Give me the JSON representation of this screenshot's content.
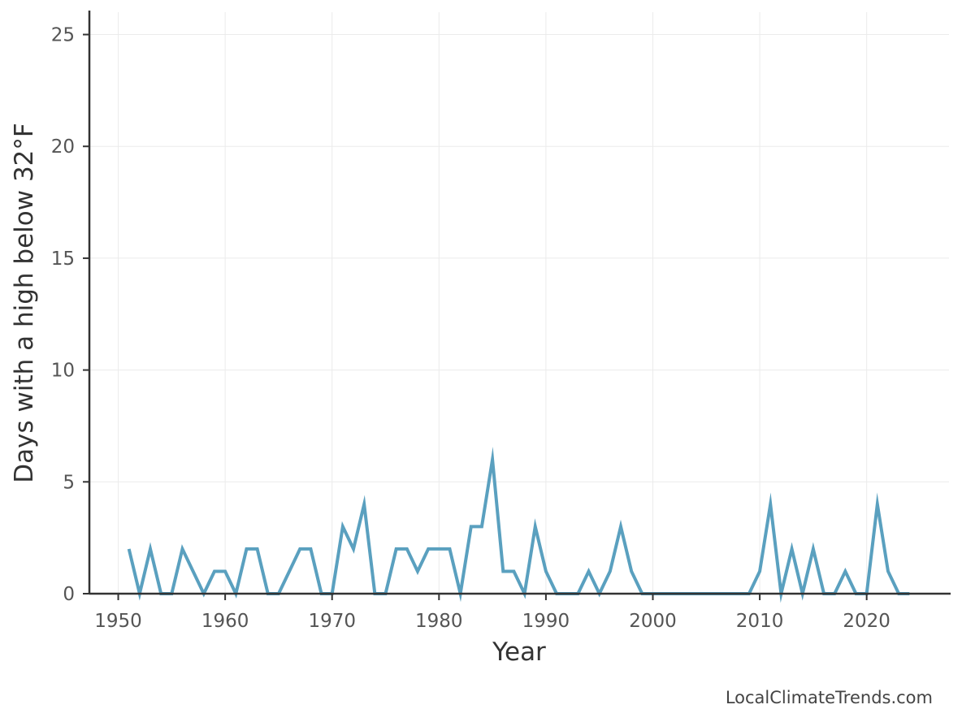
{
  "chart_data": {
    "type": "line",
    "title": "",
    "xlabel": "Year",
    "ylabel": "Days with a high below 32°F",
    "xlim": [
      1947.3,
      2027.7
    ],
    "ylim": [
      0,
      26
    ],
    "x_ticks": [
      1950,
      1960,
      1970,
      1980,
      1990,
      2000,
      2010,
      2020
    ],
    "y_ticks": [
      0,
      5,
      10,
      15,
      20,
      25
    ],
    "grid": true,
    "legend": "none",
    "x": [
      1951,
      1952,
      1953,
      1954,
      1955,
      1956,
      1957,
      1958,
      1959,
      1960,
      1961,
      1962,
      1963,
      1964,
      1965,
      1966,
      1967,
      1968,
      1969,
      1970,
      1971,
      1972,
      1973,
      1974,
      1975,
      1976,
      1977,
      1978,
      1979,
      1980,
      1981,
      1982,
      1983,
      1984,
      1985,
      1986,
      1987,
      1988,
      1989,
      1990,
      1991,
      1992,
      1993,
      1994,
      1995,
      1996,
      1997,
      1998,
      1999,
      2000,
      2001,
      2002,
      2003,
      2004,
      2005,
      2006,
      2007,
      2008,
      2009,
      2010,
      2011,
      2012,
      2013,
      2014,
      2015,
      2016,
      2017,
      2018,
      2019,
      2020,
      2021,
      2022,
      2023,
      2024
    ],
    "series": [
      {
        "color": "#5aa0bf",
        "values": [
          2,
          0,
          2,
          0,
          0,
          2,
          1,
          0,
          1,
          1,
          0,
          2,
          2,
          0,
          0,
          1,
          2,
          2,
          0,
          0,
          3,
          2,
          4,
          0,
          0,
          2,
          2,
          1,
          2,
          2,
          2,
          0,
          3,
          3,
          6,
          1,
          1,
          0,
          3,
          1,
          0,
          0,
          0,
          1,
          0,
          1,
          3,
          1,
          0,
          0,
          0,
          0,
          0,
          0,
          0,
          0,
          0,
          0,
          0,
          1,
          4,
          0,
          2,
          0,
          2,
          0,
          0,
          1,
          0,
          0,
          4,
          1,
          0,
          0
        ]
      }
    ]
  },
  "source": "LocalClimateTrends.com"
}
